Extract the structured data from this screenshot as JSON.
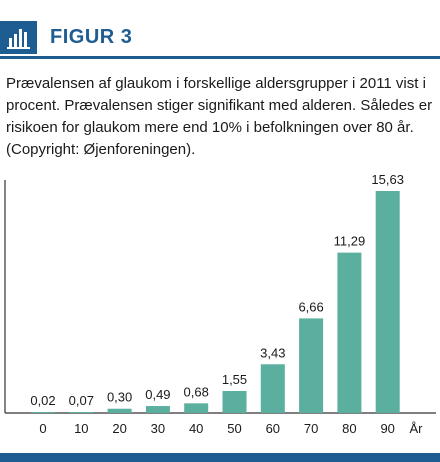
{
  "header": {
    "title": "FIGUR 3",
    "icon": "bar-chart-icon"
  },
  "caption": "Prævalensen af glaukom i forskellige aldersgrupper i 2011 vist i procent. Prævalensen stiger signifikant med alderen. Således er risikoen for glaukom mere end 10% i befolkningen over 80 år. (Copyright: Øjenforeningen).",
  "colors": {
    "accent": "#1e5d91",
    "bar": "#5aaf9e",
    "axis": "#333333"
  },
  "chart_data": {
    "type": "bar",
    "categories": [
      "0",
      "10",
      "20",
      "30",
      "40",
      "50",
      "60",
      "70",
      "80",
      "90"
    ],
    "values": [
      0.02,
      0.07,
      0.3,
      0.49,
      0.68,
      1.55,
      3.43,
      6.66,
      11.29,
      15.63
    ],
    "value_labels": [
      "0,02",
      "0,07",
      "0,30",
      "0,49",
      "0,68",
      "1,55",
      "3,43",
      "6,66",
      "11,29",
      "15,63"
    ],
    "xlabel": "År",
    "ylabel": "",
    "ylim": [
      0,
      15.63
    ],
    "grid": false
  }
}
